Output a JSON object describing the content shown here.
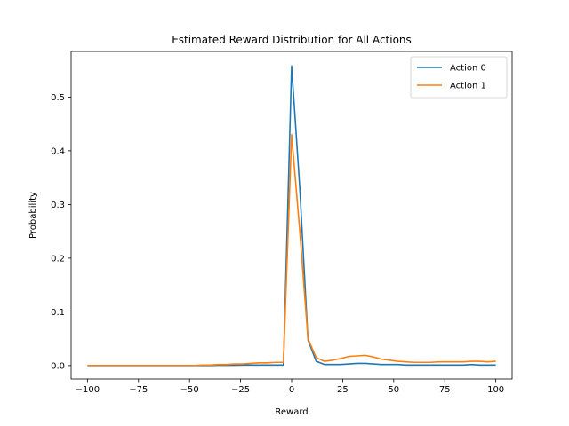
{
  "chart_data": {
    "type": "line",
    "title": "Estimated Reward Distribution for All Actions",
    "xlabel": "Reward",
    "ylabel": "Probability",
    "xlim": [
      -108,
      108
    ],
    "ylim": [
      -0.025,
      0.585
    ],
    "xticks": [
      -100,
      -75,
      -50,
      -25,
      0,
      25,
      50,
      75,
      100
    ],
    "xtick_labels": [
      "−100",
      "−75",
      "−50",
      "−25",
      "0",
      "25",
      "50",
      "75",
      "100"
    ],
    "yticks": [
      0.0,
      0.1,
      0.2,
      0.3,
      0.4,
      0.5
    ],
    "ytick_labels": [
      "0.0",
      "0.1",
      "0.2",
      "0.3",
      "0.4",
      "0.5"
    ],
    "grid": false,
    "legend": "top-right",
    "x": [
      -100,
      -96,
      -92,
      -88,
      -84,
      -80,
      -76,
      -72,
      -68,
      -64,
      -60,
      -56,
      -52,
      -48,
      -44,
      -40,
      -36,
      -32,
      -28,
      -24,
      -20,
      -16,
      -12,
      -8,
      -4,
      0,
      4,
      8,
      12,
      16,
      20,
      24,
      28,
      32,
      36,
      40,
      44,
      48,
      52,
      56,
      60,
      64,
      68,
      72,
      76,
      80,
      84,
      88,
      92,
      96,
      100
    ],
    "series": [
      {
        "name": "Action 0",
        "color": "#1f77b4",
        "values": [
          0.0,
          0.0,
          0.0,
          0.0,
          0.0,
          0.0,
          0.0,
          0.0,
          0.0,
          0.0,
          0.0,
          0.0,
          0.0,
          0.0,
          0.0,
          0.0,
          0.0005,
          0.0005,
          0.0005,
          0.001,
          0.001,
          0.001,
          0.001,
          0.001,
          0.001,
          0.558,
          0.33,
          0.048,
          0.008,
          0.002,
          0.002,
          0.002,
          0.003,
          0.004,
          0.004,
          0.003,
          0.002,
          0.002,
          0.002,
          0.001,
          0.001,
          0.001,
          0.001,
          0.001,
          0.001,
          0.001,
          0.001,
          0.002,
          0.001,
          0.001,
          0.001
        ]
      },
      {
        "name": "Action 1",
        "color": "#ff7f0e",
        "values": [
          0.0,
          0.0,
          0.0,
          0.0,
          0.0,
          0.0,
          0.0,
          0.0,
          0.0,
          0.0,
          0.0,
          0.0,
          0.0,
          0.0,
          0.001,
          0.001,
          0.002,
          0.002,
          0.003,
          0.003,
          0.004,
          0.005,
          0.005,
          0.006,
          0.006,
          0.43,
          0.25,
          0.05,
          0.015,
          0.008,
          0.01,
          0.013,
          0.017,
          0.018,
          0.019,
          0.016,
          0.012,
          0.01,
          0.008,
          0.007,
          0.006,
          0.006,
          0.006,
          0.007,
          0.007,
          0.007,
          0.007,
          0.008,
          0.008,
          0.007,
          0.008
        ]
      }
    ]
  }
}
